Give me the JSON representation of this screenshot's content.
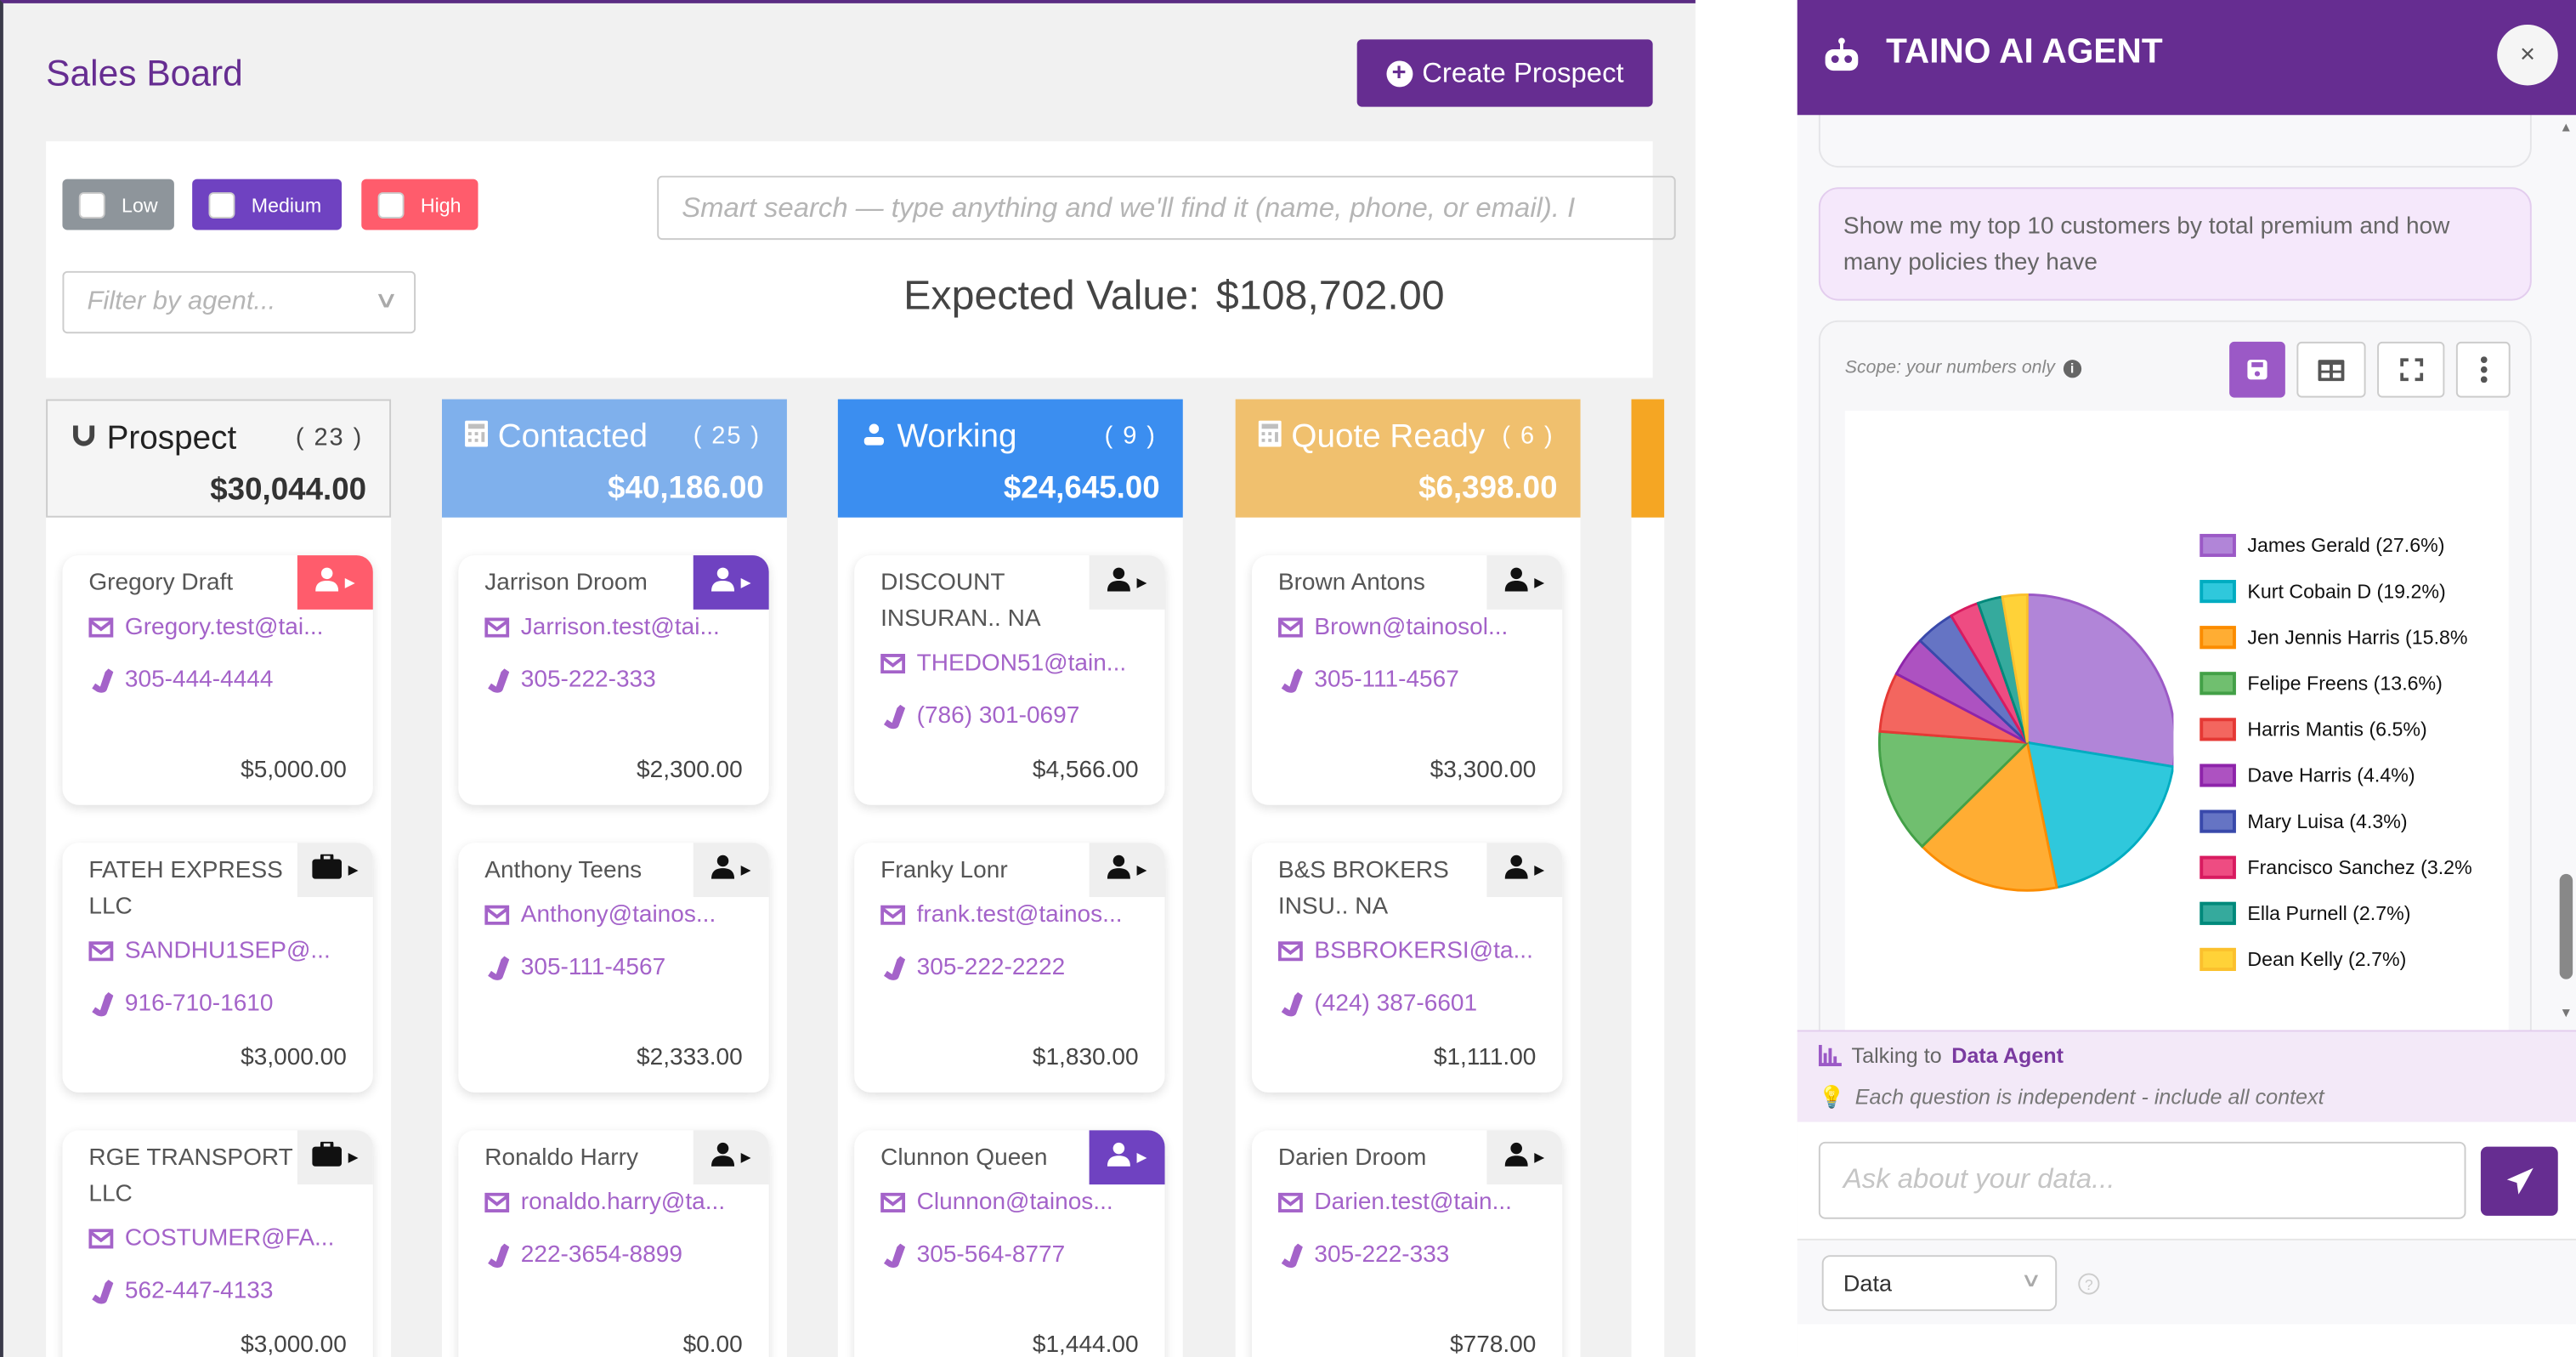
{
  "page": {
    "title": "Sales Board",
    "create_label": "Create Prospect"
  },
  "filters": {
    "chips": [
      {
        "label": "Low",
        "color": "#8e959b"
      },
      {
        "label": "Medium",
        "color": "#6f42c1"
      },
      {
        "label": "High",
        "color": "#ff5c6c"
      }
    ],
    "search_placeholder": "Smart search — type anything and we'll find it (name, phone, or email). I",
    "agent_placeholder": "Filter by agent...",
    "expected_label": "Expected Value:",
    "expected_value": "$108,702.00"
  },
  "columns": [
    {
      "name": "Prospect",
      "count": "( 23 )",
      "total": "$30,044.00",
      "color": "#f5f5f5",
      "icon": "magnet-icon",
      "cards": [
        {
          "name": "Gregory Draft",
          "email": "Gregory.test@tai...",
          "phone": "305-444-4444",
          "amount": "$5,000.00",
          "tab": "person",
          "tab_color": "#ff5c6c"
        },
        {
          "name": "FATEH EXPRESS LLC",
          "email": "SANDHU1SEP@...",
          "phone": "916-710-1610",
          "amount": "$3,000.00",
          "tab": "briefcase",
          "tab_color": "#efefef"
        },
        {
          "name": "RGE TRANSPORT LLC",
          "email": "COSTUMER@FA...",
          "phone": "562-447-4133",
          "amount": "$3,000.00",
          "tab": "briefcase",
          "tab_color": "#efefef"
        }
      ]
    },
    {
      "name": "Contacted",
      "count": "( 25 )",
      "total": "$40,186.00",
      "color": "#7fb0ec",
      "icon": "calculator-icon",
      "cards": [
        {
          "name": "Jarrison Droom",
          "email": "Jarrison.test@tai...",
          "phone": "305-222-333",
          "amount": "$2,300.00",
          "tab": "person",
          "tab_color": "#6f42c1"
        },
        {
          "name": "Anthony Teens",
          "email": "Anthony@tainos...",
          "phone": "305-111-4567",
          "amount": "$2,333.00",
          "tab": "person",
          "tab_color": "#efefef"
        },
        {
          "name": "Ronaldo Harry",
          "email": "ronaldo.harry@ta...",
          "phone": "222-3654-8899",
          "amount": "$0.00",
          "tab": "person",
          "tab_color": "#efefef"
        }
      ]
    },
    {
      "name": "Working",
      "count": "( 9 )",
      "total": "$24,645.00",
      "color": "#3b8ef0",
      "icon": "users-icon",
      "cards": [
        {
          "name": "DISCOUNT INSURAN.. NA",
          "email": "THEDON51@tain...",
          "phone": "(786) 301-0697",
          "amount": "$4,566.00",
          "tab": "person",
          "tab_color": "#efefef"
        },
        {
          "name": "Franky Lonr",
          "email": "frank.test@tainos...",
          "phone": "305-222-2222",
          "amount": "$1,830.00",
          "tab": "person",
          "tab_color": "#efefef"
        },
        {
          "name": "Clunnon Queen",
          "email": "Clunnon@tainos...",
          "phone": "305-564-8777",
          "amount": "$1,444.00",
          "tab": "person",
          "tab_color": "#6f42c1"
        }
      ]
    },
    {
      "name": "Quote Ready",
      "count": "( 6 )",
      "total": "$6,398.00",
      "color": "#f0c06e",
      "icon": "calculator-icon",
      "cards": [
        {
          "name": "Brown Antons",
          "email": "Brown@tainosol...",
          "phone": "305-111-4567",
          "amount": "$3,300.00",
          "tab": "person",
          "tab_color": "#efefef"
        },
        {
          "name": "B&S BROKERS INSU.. NA",
          "email": "BSBROKERSI@ta...",
          "phone": "(424) 387-6601",
          "amount": "$1,111.00",
          "tab": "person",
          "tab_color": "#efefef"
        },
        {
          "name": "Darien Droom",
          "email": "Darien.test@tain...",
          "phone": "305-222-333",
          "amount": "$778.00",
          "tab": "person",
          "tab_color": "#efefef"
        }
      ]
    }
  ],
  "agent": {
    "title": "TAINO AI AGENT",
    "close": "×",
    "user_message": "Show me my top 10 customers by total premium and how many policies they have",
    "scope": "Scope: your numbers only",
    "talking_to_label": "Talking to",
    "talking_to_agent": "Data Agent",
    "tip": "Each question is independent - include all context",
    "ask_placeholder": "Ask about your data...",
    "mode_select": "Data",
    "help": "?",
    "accent": "#662d91"
  },
  "chart_data": {
    "type": "pie",
    "legend_placement": "right",
    "slices": [
      {
        "label": "James Gerald (27.6%)",
        "name": "James Gerald",
        "value": 27.6,
        "color": "#b185d8",
        "stroke": "#9b59c6"
      },
      {
        "label": "Kurt Cobain D (19.2%)",
        "name": "Kurt Cobain D",
        "value": 19.2,
        "color": "#2fc8dc",
        "stroke": "#00acc1"
      },
      {
        "label": "Jen Jennis Harris (15.8%",
        "name": "Jen Jennis Harris",
        "value": 15.8,
        "color": "#ffad33",
        "stroke": "#fb8c00"
      },
      {
        "label": "Felipe Freens (13.6%)",
        "name": "Felipe Freens",
        "value": 13.6,
        "color": "#70bf6f",
        "stroke": "#43a047"
      },
      {
        "label": "Harris Mantis (6.5%)",
        "name": "Harris Mantis",
        "value": 6.5,
        "color": "#f3665f",
        "stroke": "#e53935"
      },
      {
        "label": "Dave Harris (4.4%)",
        "name": "Dave Harris",
        "value": 4.4,
        "color": "#ad52c1",
        "stroke": "#8e24aa"
      },
      {
        "label": "Mary Luisa (4.3%)",
        "name": "Mary Luisa",
        "value": 4.3,
        "color": "#6574c4",
        "stroke": "#3949ab"
      },
      {
        "label": "Francisco Sanchez (3.2%",
        "name": "Francisco Sanchez",
        "value": 3.2,
        "color": "#ee4c82",
        "stroke": "#d81b60"
      },
      {
        "label": "Ella Purnell (2.7%)",
        "name": "Ella Purnell",
        "value": 2.7,
        "color": "#35aa9d",
        "stroke": "#00897b"
      },
      {
        "label": "Dean Kelly (2.7%)",
        "name": "Dean Kelly",
        "value": 2.7,
        "color": "#ffd238",
        "stroke": "#fbc02d"
      }
    ]
  }
}
